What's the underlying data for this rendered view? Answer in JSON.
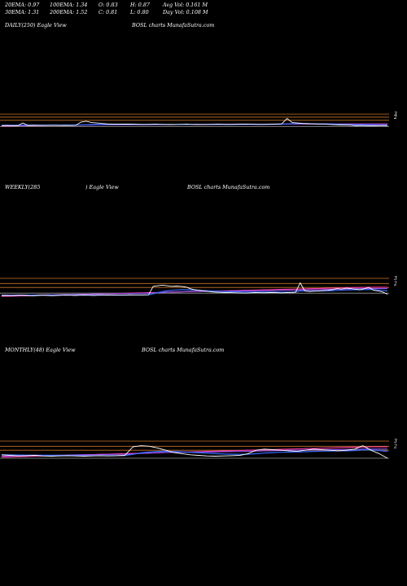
{
  "header": {
    "ema20": "20EMA: 0.97",
    "ema100": "100EMA: 1.34",
    "open": "O: 0.83",
    "high": "H: 0.87",
    "avg_vol": "Avg Vol: 0.161 M",
    "ema30": "30EMA: 1.31",
    "ema200": "200EMA: 1.52",
    "close": "C: 0.81",
    "low": "L: 0.80",
    "day_vol": "Day Vol: 0.108 M"
  },
  "panels": [
    {
      "label": "DAILY(250) Eagle   View",
      "watermark": "BOSL  charts MunafaSutra.com",
      "ticks": [
        "3",
        "2"
      ]
    },
    {
      "label": "WEEKLY(285",
      "label2": ") Eagle   View",
      "watermark": "BOSL  charts MunafaSutra.com",
      "ticks": [
        "3",
        "2"
      ]
    },
    {
      "label": "MONTHLY(48) Eagle   View",
      "watermark": "BOSL  charts MunafaSutra.com",
      "ticks": [
        "3",
        "2"
      ]
    }
  ],
  "colors": {
    "background": "#000000",
    "price": "#ffffff",
    "ema_short": "#3a6bff",
    "ema_long": "#ff3ab0",
    "ema_mid": "#9b5cff",
    "ref_orange": "#c8742a",
    "ref_grey": "#9a9a9a"
  },
  "chart_data": [
    {
      "type": "line",
      "title": "DAILY(250)",
      "ylim": [
        0,
        4
      ],
      "price": [
        1.6,
        1.62,
        1.6,
        1.58,
        1.9,
        1.62,
        1.64,
        1.63,
        1.62,
        1.63,
        1.64,
        1.62,
        1.63,
        1.62,
        1.63,
        2.0,
        2.1,
        1.95,
        1.9,
        1.85,
        1.8,
        1.78,
        1.76,
        1.77,
        1.78,
        1.76,
        1.75,
        1.74,
        1.75,
        1.76,
        1.75,
        1.74,
        1.73,
        1.74,
        1.75,
        1.76,
        1.74,
        1.73,
        1.72,
        1.74,
        1.75,
        1.76,
        1.75,
        1.74,
        1.75,
        1.76,
        1.77,
        1.76,
        1.75,
        1.74,
        1.75,
        1.76,
        1.78,
        1.8,
        2.4,
        1.95,
        1.9,
        1.85,
        1.82,
        1.8,
        1.78,
        1.76,
        1.74,
        1.7,
        1.68,
        1.66,
        1.65,
        1.6,
        1.62,
        1.6,
        1.58,
        1.6,
        1.62,
        1.6
      ],
      "ema_short": [
        1.65,
        1.65,
        1.65,
        1.65,
        1.66,
        1.66,
        1.66,
        1.66,
        1.66,
        1.66,
        1.66,
        1.66,
        1.66,
        1.66,
        1.66,
        1.68,
        1.7,
        1.72,
        1.73,
        1.73,
        1.73,
        1.73,
        1.73,
        1.73,
        1.73,
        1.73,
        1.73,
        1.73,
        1.73,
        1.73,
        1.73,
        1.73,
        1.73,
        1.73,
        1.73,
        1.73,
        1.73,
        1.73,
        1.73,
        1.73,
        1.73,
        1.73,
        1.73,
        1.73,
        1.73,
        1.73,
        1.74,
        1.74,
        1.74,
        1.74,
        1.74,
        1.74,
        1.75,
        1.76,
        1.8,
        1.82,
        1.83,
        1.83,
        1.82,
        1.81,
        1.8,
        1.79,
        1.78,
        1.76,
        1.74,
        1.72,
        1.7,
        1.68,
        1.67,
        1.66,
        1.65,
        1.64,
        1.64,
        1.63
      ],
      "ema_long": [
        1.55,
        1.56,
        1.57,
        1.58,
        1.59,
        1.6,
        1.61,
        1.62,
        1.63,
        1.63,
        1.64,
        1.64,
        1.65,
        1.65,
        1.66,
        1.66,
        1.67,
        1.67,
        1.68,
        1.68,
        1.69,
        1.69,
        1.69,
        1.7,
        1.7,
        1.7,
        1.71,
        1.71,
        1.71,
        1.72,
        1.72,
        1.72,
        1.72,
        1.73,
        1.73,
        1.73,
        1.73,
        1.74,
        1.74,
        1.74,
        1.74,
        1.75,
        1.75,
        1.75,
        1.75,
        1.76,
        1.76,
        1.76,
        1.76,
        1.77,
        1.77,
        1.77,
        1.77,
        1.78,
        1.78,
        1.78,
        1.78,
        1.78,
        1.79,
        1.79,
        1.79,
        1.79,
        1.79,
        1.79,
        1.79,
        1.79,
        1.79,
        1.79,
        1.79,
        1.79,
        1.79,
        1.79,
        1.79,
        1.79
      ],
      "ema_mid": [
        1.6,
        1.6,
        1.61,
        1.61,
        1.62,
        1.62,
        1.63,
        1.63,
        1.64,
        1.64,
        1.64,
        1.65,
        1.65,
        1.65,
        1.66,
        1.66,
        1.67,
        1.67,
        1.68,
        1.68,
        1.69,
        1.69,
        1.7,
        1.7,
        1.7,
        1.71,
        1.71,
        1.71,
        1.72,
        1.72,
        1.72,
        1.72,
        1.73,
        1.73,
        1.73,
        1.73,
        1.74,
        1.74,
        1.74,
        1.74,
        1.75,
        1.75,
        1.75,
        1.75,
        1.76,
        1.76,
        1.76,
        1.76,
        1.77,
        1.77,
        1.77,
        1.77,
        1.78,
        1.78,
        1.79,
        1.79,
        1.79,
        1.79,
        1.79,
        1.79,
        1.79,
        1.79,
        1.79,
        1.79,
        1.78,
        1.78,
        1.78,
        1.77,
        1.77,
        1.77,
        1.76,
        1.76,
        1.76,
        1.75
      ],
      "ref_lines": [
        2.9,
        2.55,
        2.2,
        1.5
      ]
    },
    {
      "type": "line",
      "title": "WEEKLY(285",
      "ylim": [
        0,
        4
      ],
      "price": [
        1.5,
        1.5,
        1.48,
        1.5,
        1.52,
        1.5,
        1.48,
        1.47,
        1.5,
        1.52,
        1.5,
        1.48,
        1.5,
        1.52,
        1.53,
        1.52,
        1.5,
        1.52,
        1.53,
        1.52,
        1.5,
        1.52,
        1.53,
        1.54,
        1.53,
        1.52,
        1.53,
        1.54,
        1.55,
        1.54,
        1.53,
        1.55,
        1.56,
        2.3,
        2.35,
        2.4,
        2.35,
        2.3,
        2.32,
        2.3,
        2.25,
        2.1,
        2.0,
        1.95,
        1.9,
        1.85,
        1.8,
        1.78,
        1.76,
        1.75,
        1.74,
        1.73,
        1.72,
        1.7,
        1.72,
        1.75,
        1.74,
        1.73,
        1.75,
        1.76,
        1.74,
        1.72,
        1.75,
        1.76,
        1.78,
        2.6,
        1.9,
        1.85,
        1.88,
        1.9,
        1.92,
        1.95,
        2.0,
        2.1,
        2.05,
        2.15,
        2.1,
        2.05,
        2.0,
        2.1,
        2.2,
        1.95,
        1.9,
        1.8,
        1.6
      ],
      "ema_short": [
        1.52,
        1.52,
        1.52,
        1.52,
        1.52,
        1.52,
        1.52,
        1.52,
        1.52,
        1.52,
        1.52,
        1.52,
        1.52,
        1.52,
        1.52,
        1.52,
        1.52,
        1.52,
        1.52,
        1.52,
        1.52,
        1.52,
        1.53,
        1.53,
        1.53,
        1.53,
        1.53,
        1.53,
        1.54,
        1.54,
        1.54,
        1.54,
        1.55,
        1.65,
        1.75,
        1.83,
        1.9,
        1.95,
        1.98,
        2.0,
        2.0,
        1.99,
        1.97,
        1.95,
        1.93,
        1.91,
        1.89,
        1.87,
        1.85,
        1.84,
        1.83,
        1.82,
        1.81,
        1.8,
        1.8,
        1.8,
        1.79,
        1.79,
        1.79,
        1.79,
        1.79,
        1.78,
        1.78,
        1.78,
        1.79,
        1.9,
        1.9,
        1.89,
        1.89,
        1.89,
        1.9,
        1.91,
        1.92,
        1.95,
        1.96,
        1.98,
        1.99,
        2.0,
        2.0,
        2.01,
        2.03,
        2.0,
        1.98,
        1.95,
        1.9
      ],
      "ema_long": [
        1.42,
        1.43,
        1.44,
        1.45,
        1.46,
        1.47,
        1.48,
        1.49,
        1.5,
        1.51,
        1.52,
        1.53,
        1.54,
        1.55,
        1.56,
        1.57,
        1.58,
        1.59,
        1.6,
        1.61,
        1.62,
        1.63,
        1.64,
        1.65,
        1.66,
        1.67,
        1.68,
        1.69,
        1.7,
        1.71,
        1.72,
        1.73,
        1.74,
        1.75,
        1.76,
        1.77,
        1.78,
        1.79,
        1.8,
        1.81,
        1.82,
        1.83,
        1.84,
        1.85,
        1.86,
        1.87,
        1.88,
        1.89,
        1.9,
        1.91,
        1.92,
        1.93,
        1.94,
        1.95,
        1.96,
        1.97,
        1.98,
        1.99,
        2.0,
        2.01,
        2.02,
        2.03,
        2.04,
        2.05,
        2.06,
        2.07,
        2.08,
        2.09,
        2.1,
        2.11,
        2.12,
        2.13,
        2.14,
        2.15,
        2.16,
        2.17,
        2.18,
        2.19,
        2.2,
        2.21,
        2.22,
        2.22,
        2.22,
        2.22,
        2.22
      ],
      "ema_mid": [
        1.48,
        1.49,
        1.5,
        1.5,
        1.51,
        1.52,
        1.52,
        1.53,
        1.54,
        1.54,
        1.55,
        1.56,
        1.56,
        1.57,
        1.58,
        1.58,
        1.59,
        1.6,
        1.6,
        1.61,
        1.62,
        1.62,
        1.63,
        1.64,
        1.64,
        1.65,
        1.66,
        1.66,
        1.67,
        1.68,
        1.68,
        1.69,
        1.7,
        1.72,
        1.74,
        1.76,
        1.78,
        1.8,
        1.81,
        1.82,
        1.83,
        1.84,
        1.85,
        1.85,
        1.86,
        1.86,
        1.87,
        1.87,
        1.88,
        1.88,
        1.89,
        1.89,
        1.9,
        1.9,
        1.91,
        1.91,
        1.92,
        1.92,
        1.93,
        1.93,
        1.94,
        1.94,
        1.95,
        1.95,
        1.96,
        1.98,
        1.99,
        2.0,
        2.0,
        2.01,
        2.02,
        2.03,
        2.04,
        2.05,
        2.06,
        2.07,
        2.08,
        2.09,
        2.1,
        2.1,
        2.11,
        2.11,
        2.11,
        2.11,
        2.11
      ],
      "ref_lines": [
        3.0,
        2.55,
        2.2,
        1.7
      ]
    },
    {
      "type": "line",
      "title": "MONTHLY(48)",
      "ylim": [
        0,
        4
      ],
      "price": [
        1.8,
        1.75,
        1.7,
        1.72,
        1.75,
        1.7,
        1.68,
        1.7,
        1.72,
        1.7,
        1.68,
        1.7,
        1.72,
        1.7,
        1.72,
        1.75,
        2.5,
        2.6,
        2.55,
        2.4,
        2.2,
        2.0,
        1.9,
        1.8,
        1.75,
        1.7,
        1.68,
        1.7,
        1.72,
        1.75,
        1.9,
        2.2,
        2.3,
        2.25,
        2.2,
        2.15,
        2.1,
        2.2,
        2.3,
        2.25,
        2.2,
        2.15,
        2.2,
        2.3,
        2.6,
        2.2,
        1.9,
        1.5
      ],
      "ema_short": [
        1.8,
        1.79,
        1.78,
        1.77,
        1.77,
        1.76,
        1.75,
        1.75,
        1.74,
        1.74,
        1.73,
        1.73,
        1.73,
        1.73,
        1.73,
        1.73,
        1.85,
        1.97,
        2.05,
        2.1,
        2.11,
        2.09,
        2.06,
        2.02,
        1.98,
        1.94,
        1.9,
        1.87,
        1.85,
        1.84,
        1.85,
        1.9,
        1.95,
        1.99,
        2.02,
        2.04,
        2.05,
        2.07,
        2.1,
        2.12,
        2.13,
        2.14,
        2.15,
        2.17,
        2.23,
        2.22,
        2.18,
        2.1
      ],
      "ema_long": [
        1.6,
        1.62,
        1.64,
        1.66,
        1.68,
        1.7,
        1.72,
        1.74,
        1.76,
        1.78,
        1.8,
        1.82,
        1.84,
        1.86,
        1.88,
        1.9,
        1.92,
        1.94,
        1.96,
        1.98,
        2.0,
        2.02,
        2.04,
        2.06,
        2.08,
        2.1,
        2.12,
        2.14,
        2.16,
        2.18,
        2.2,
        2.22,
        2.24,
        2.26,
        2.28,
        2.3,
        2.32,
        2.34,
        2.36,
        2.38,
        2.4,
        2.42,
        2.44,
        2.46,
        2.48,
        2.5,
        2.5,
        2.5
      ],
      "ema_mid": [
        1.7,
        1.71,
        1.72,
        1.73,
        1.74,
        1.75,
        1.76,
        1.77,
        1.78,
        1.79,
        1.8,
        1.81,
        1.82,
        1.83,
        1.84,
        1.85,
        1.88,
        1.92,
        1.95,
        1.98,
        2.0,
        2.01,
        2.02,
        2.03,
        2.04,
        2.05,
        2.06,
        2.07,
        2.08,
        2.09,
        2.1,
        2.12,
        2.14,
        2.16,
        2.18,
        2.2,
        2.21,
        2.22,
        2.23,
        2.24,
        2.25,
        2.26,
        2.27,
        2.28,
        2.3,
        2.31,
        2.31,
        2.3
      ],
      "ref_lines": [
        3.0,
        2.55,
        2.2,
        1.5
      ]
    }
  ]
}
